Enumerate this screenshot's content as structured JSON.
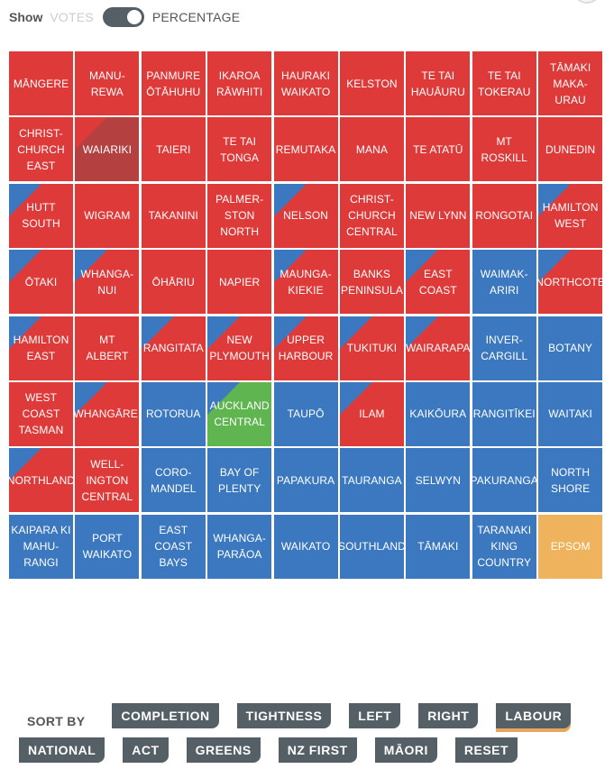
{
  "controls": {
    "show_label": "Show",
    "votes_label": "VOTES",
    "percentage_label": "PERCENTAGE"
  },
  "colors": {
    "labour": "#de3a3a",
    "national": "#3b78bf",
    "greens": "#5fb54f",
    "act": "#efb25d",
    "maori": "#b44040"
  },
  "electorates": [
    {
      "name": "MĀNGERE",
      "party": "labour",
      "corner": null
    },
    {
      "name": "MANU-\nREWA",
      "party": "labour",
      "corner": null
    },
    {
      "name": "PANMURE\nŌTĀHUHU",
      "party": "labour",
      "corner": null
    },
    {
      "name": "IKAROA\nRĀWHITI",
      "party": "labour",
      "corner": null
    },
    {
      "name": "HAURAKI\nWAIKATO",
      "party": "labour",
      "corner": null
    },
    {
      "name": "KELSTON",
      "party": "labour",
      "corner": null
    },
    {
      "name": "TE TAI\nHAUĀURU",
      "party": "labour",
      "corner": null
    },
    {
      "name": "TE TAI\nTOKERAU",
      "party": "labour",
      "corner": null
    },
    {
      "name": "TĀMAKI\nMAKA-\nURAU",
      "party": "labour",
      "corner": null
    },
    {
      "name": "CHRIST-\nCHURCH\nEAST",
      "party": "labour",
      "corner": null
    },
    {
      "name": "WAIARIKI",
      "party": "maori",
      "corner": "labour"
    },
    {
      "name": "TAIERI",
      "party": "labour",
      "corner": null
    },
    {
      "name": "TE TAI\nTONGA",
      "party": "labour",
      "corner": null
    },
    {
      "name": "REMUTAKA",
      "party": "labour",
      "corner": null
    },
    {
      "name": "MANA",
      "party": "labour",
      "corner": null
    },
    {
      "name": "TE ATATŪ",
      "party": "labour",
      "corner": null
    },
    {
      "name": "MT\nROSKILL",
      "party": "labour",
      "corner": null
    },
    {
      "name": "DUNEDIN",
      "party": "labour",
      "corner": null
    },
    {
      "name": "HUTT\nSOUTH",
      "party": "labour",
      "corner": "national"
    },
    {
      "name": "WIGRAM",
      "party": "labour",
      "corner": null
    },
    {
      "name": "TAKANINI",
      "party": "labour",
      "corner": null
    },
    {
      "name": "PALMER-\nSTON\nNORTH",
      "party": "labour",
      "corner": null
    },
    {
      "name": "NELSON",
      "party": "labour",
      "corner": "national"
    },
    {
      "name": "CHRIST-\nCHURCH\nCENTRAL",
      "party": "labour",
      "corner": null
    },
    {
      "name": "NEW LYNN",
      "party": "labour",
      "corner": null
    },
    {
      "name": "RONGOTAI",
      "party": "labour",
      "corner": null
    },
    {
      "name": "HAMILTON\nWEST",
      "party": "labour",
      "corner": "national"
    },
    {
      "name": "ŌTAKI",
      "party": "labour",
      "corner": "national"
    },
    {
      "name": "WHANGA-\nNUI",
      "party": "labour",
      "corner": "national"
    },
    {
      "name": "ŌHĀRIU",
      "party": "labour",
      "corner": null
    },
    {
      "name": "NAPIER",
      "party": "labour",
      "corner": null
    },
    {
      "name": "MAUNGA-\nKIEKIE",
      "party": "labour",
      "corner": "national"
    },
    {
      "name": "BANKS\nPENINSULA",
      "party": "labour",
      "corner": null
    },
    {
      "name": "EAST\nCOAST",
      "party": "labour",
      "corner": "national"
    },
    {
      "name": "WAIMAK-\nARIRI",
      "party": "national",
      "corner": null
    },
    {
      "name": "NORTHCOTE",
      "party": "labour",
      "corner": "national"
    },
    {
      "name": "HAMILTON\nEAST",
      "party": "labour",
      "corner": "national"
    },
    {
      "name": "MT ALBERT",
      "party": "labour",
      "corner": null
    },
    {
      "name": "RANGITATA",
      "party": "labour",
      "corner": "national"
    },
    {
      "name": "NEW\nPLYMOUTH",
      "party": "labour",
      "corner": "national"
    },
    {
      "name": "UPPER\nHARBOUR",
      "party": "labour",
      "corner": "national"
    },
    {
      "name": "TUKITUKI",
      "party": "labour",
      "corner": "national"
    },
    {
      "name": "WAIRARAPA",
      "party": "labour",
      "corner": "national"
    },
    {
      "name": "INVER-\nCARGILL",
      "party": "national",
      "corner": null
    },
    {
      "name": "BOTANY",
      "party": "national",
      "corner": null
    },
    {
      "name": "WEST\nCOAST\nTASMAN",
      "party": "labour",
      "corner": null
    },
    {
      "name": "WHANGĀREI",
      "party": "labour",
      "corner": "national"
    },
    {
      "name": "ROTORUA",
      "party": "national",
      "corner": null
    },
    {
      "name": "AUCKLAND\nCENTRAL",
      "party": "greens",
      "corner": "national"
    },
    {
      "name": "TAUPŌ",
      "party": "national",
      "corner": null
    },
    {
      "name": "ILAM",
      "party": "labour",
      "corner": "national"
    },
    {
      "name": "KAIKŌURA",
      "party": "national",
      "corner": null
    },
    {
      "name": "RANGITĪKEI",
      "party": "national",
      "corner": null
    },
    {
      "name": "WAITAKI",
      "party": "national",
      "corner": null
    },
    {
      "name": "NORTHLAND",
      "party": "labour",
      "corner": "national"
    },
    {
      "name": "WELL-\nINGTON\nCENTRAL",
      "party": "labour",
      "corner": null
    },
    {
      "name": "CORO-\nMANDEL",
      "party": "national",
      "corner": null
    },
    {
      "name": "BAY OF\nPLENTY",
      "party": "national",
      "corner": null
    },
    {
      "name": "PAPAKURA",
      "party": "national",
      "corner": null
    },
    {
      "name": "TAURANGA",
      "party": "national",
      "corner": null
    },
    {
      "name": "SELWYN",
      "party": "national",
      "corner": null
    },
    {
      "name": "PAKURANGA",
      "party": "national",
      "corner": null
    },
    {
      "name": "NORTH\nSHORE",
      "party": "national",
      "corner": null
    },
    {
      "name": "KAIPARA KI\nMAHU-\nRANGI",
      "party": "national",
      "corner": null
    },
    {
      "name": "PORT\nWAIKATO",
      "party": "national",
      "corner": null
    },
    {
      "name": "EAST\nCOAST\nBAYS",
      "party": "national",
      "corner": null
    },
    {
      "name": "WHANGA-\nPARĀOA",
      "party": "national",
      "corner": null
    },
    {
      "name": "WAIKATO",
      "party": "national",
      "corner": null
    },
    {
      "name": "SOUTHLAND",
      "party": "national",
      "corner": null
    },
    {
      "name": "TĀMAKI",
      "party": "national",
      "corner": null
    },
    {
      "name": "TARANAKI\nKING\nCOUNTRY",
      "party": "national",
      "corner": null
    },
    {
      "name": "EPSOM",
      "party": "act",
      "corner": null
    }
  ],
  "sort": {
    "label": "SORT BY",
    "row1": [
      "COMPLETION",
      "TIGHTNESS",
      "LEFT",
      "RIGHT",
      "LABOUR"
    ],
    "row2": [
      "NATIONAL",
      "ACT",
      "GREENS",
      "NZ FIRST",
      "MĀORI",
      "RESET"
    ],
    "active": "LABOUR"
  }
}
